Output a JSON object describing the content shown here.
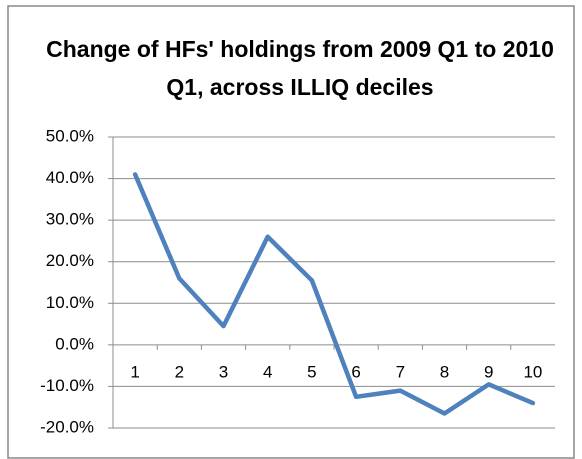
{
  "chart_data": {
    "type": "line",
    "title": "Change of HFs' holdings from 2009 Q1 to 2010 Q1, across ILLIQ deciles",
    "categories": [
      "1",
      "2",
      "3",
      "4",
      "5",
      "6",
      "7",
      "8",
      "9",
      "10"
    ],
    "values": [
      41,
      16,
      4.5,
      26,
      15.5,
      -12.5,
      -11,
      -16.5,
      -9.5,
      -14
    ],
    "color": "#4f81bd",
    "ylim": [
      -20,
      50
    ],
    "yticks": [
      {
        "value": -20,
        "label": "-20.0%"
      },
      {
        "value": -10,
        "label": "-10.0%"
      },
      {
        "value": 0,
        "label": "0.0%"
      },
      {
        "value": 10,
        "label": "10.0%"
      },
      {
        "value": 20,
        "label": "20.0%"
      },
      {
        "value": 30,
        "label": "30.0%"
      },
      {
        "value": 40,
        "label": "40.0%"
      },
      {
        "value": 50,
        "label": "50.0%"
      }
    ],
    "grid": true
  }
}
